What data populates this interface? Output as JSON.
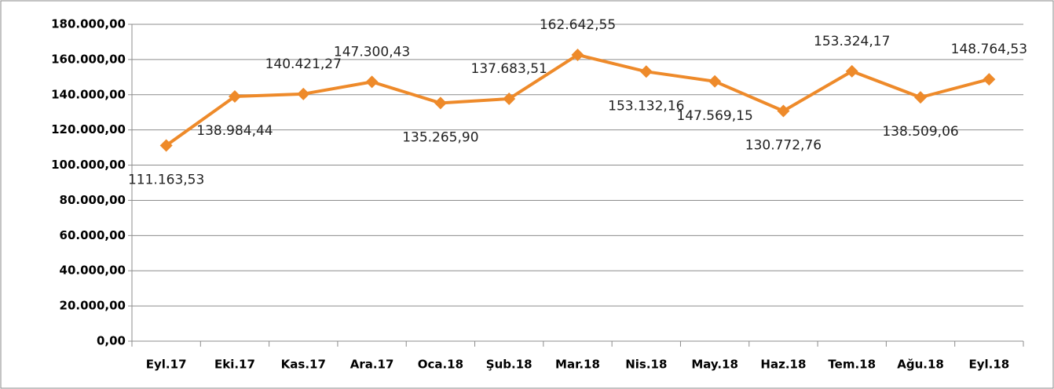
{
  "chart_data": {
    "type": "line",
    "categories": [
      "Eyl.17",
      "Eki.17",
      "Kas.17",
      "Ara.17",
      "Oca.18",
      "Şub.18",
      "Mar.18",
      "Nis.18",
      "May.18",
      "Haz.18",
      "Tem.18",
      "Ağu.18",
      "Eyl.18"
    ],
    "series": [
      {
        "name": null,
        "color": "#ee8a2a",
        "values": [
          111163.53,
          138984.44,
          140421.27,
          147300.43,
          135265.9,
          137683.51,
          162642.55,
          153132.16,
          147569.15,
          130772.76,
          153324.17,
          138509.06,
          148764.53
        ],
        "value_labels": [
          "111.163,53",
          "138.984,44",
          "140.421,27",
          "147.300,43",
          "135.265,90",
          "137.683,51",
          "162.642,55",
          "153.132,16",
          "147.569,15",
          "130.772,76",
          "153.324,17",
          "138.509,06",
          "148.764,53"
        ]
      }
    ],
    "ylim": [
      0,
      180000
    ],
    "yticks": [
      {
        "value": 0,
        "label": "0,00"
      },
      {
        "value": 20000,
        "label": "20.000,00"
      },
      {
        "value": 40000,
        "label": "40.000,00"
      },
      {
        "value": 60000,
        "label": "60.000,00"
      },
      {
        "value": 80000,
        "label": "80.000,00"
      },
      {
        "value": 100000,
        "label": "100.000,00"
      },
      {
        "value": 120000,
        "label": "120.000,00"
      },
      {
        "value": 140000,
        "label": "140.000,00"
      },
      {
        "value": 160000,
        "label": "160.000,00"
      },
      {
        "value": 180000,
        "label": "180.000,00"
      }
    ],
    "grid": true
  }
}
